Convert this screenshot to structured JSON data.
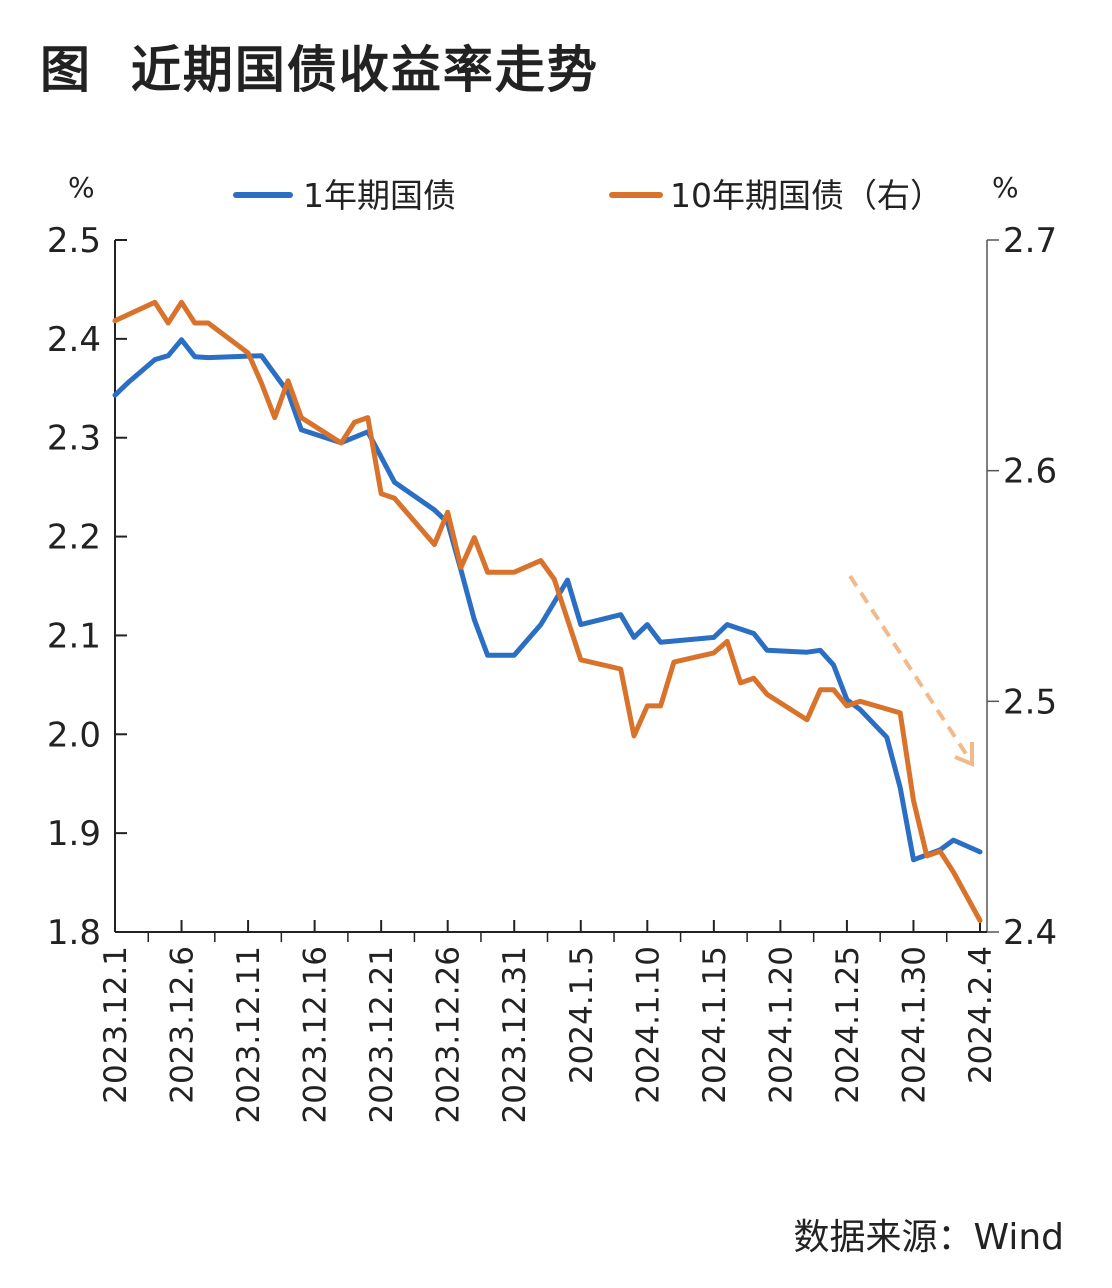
{
  "title": "图  近期国债收益率走势",
  "source": "数据来源：Wind",
  "chart_data": {
    "type": "line",
    "left_unit": "%",
    "right_unit": "%",
    "xlim": [
      "2023-12-01",
      "2024-02-04"
    ],
    "ylim_left": [
      1.8,
      2.5
    ],
    "ylim_right": [
      2.4,
      2.7
    ],
    "yticks_left": [
      "1.8",
      "1.9",
      "2.0",
      "2.1",
      "2.2",
      "2.3",
      "2.4",
      "2.5"
    ],
    "yticks_right": [
      "2.4",
      "2.5",
      "2.6",
      "2.7"
    ],
    "xticks": [
      {
        "date": "2023-12-01",
        "label": "2023.12.1"
      },
      {
        "date": "2023-12-06",
        "label": "2023.12.6"
      },
      {
        "date": "2023-12-11",
        "label": "2023.12.11"
      },
      {
        "date": "2023-12-16",
        "label": "2023.12.16"
      },
      {
        "date": "2023-12-21",
        "label": "2023.12.21"
      },
      {
        "date": "2023-12-26",
        "label": "2023.12.26"
      },
      {
        "date": "2023-12-31",
        "label": "2023.12.31"
      },
      {
        "date": "2024-01-05",
        "label": "2024.1.5"
      },
      {
        "date": "2024-01-10",
        "label": "2024.1.10"
      },
      {
        "date": "2024-01-15",
        "label": "2024.1.15"
      },
      {
        "date": "2024-01-20",
        "label": "2024.1.20"
      },
      {
        "date": "2024-01-25",
        "label": "2024.1.25"
      },
      {
        "date": "2024-01-30",
        "label": "2024.1.30"
      },
      {
        "date": "2024-02-04",
        "label": "2024.2.4"
      }
    ],
    "grid": false,
    "legend_position": "top",
    "annotation": "dashed downward arrow near end",
    "series": [
      {
        "name": "1年期国债",
        "axis": "left",
        "color": "#2a6fc4",
        "points": [
          [
            "2023-12-01",
            2.343
          ],
          [
            "2023-12-02",
            2.356
          ],
          [
            "2023-12-04",
            2.379
          ],
          [
            "2023-12-05",
            2.383
          ],
          [
            "2023-12-06",
            2.399
          ],
          [
            "2023-12-07",
            2.382
          ],
          [
            "2023-12-08",
            2.381
          ],
          [
            "2023-12-12",
            2.383
          ],
          [
            "2023-12-14",
            2.346
          ],
          [
            "2023-12-15",
            2.308
          ],
          [
            "2023-12-18",
            2.295
          ],
          [
            "2023-12-20",
            2.306
          ],
          [
            "2023-12-22",
            2.255
          ],
          [
            "2023-12-25",
            2.227
          ],
          [
            "2023-12-26",
            2.214
          ],
          [
            "2023-12-27",
            2.166
          ],
          [
            "2023-12-28",
            2.116
          ],
          [
            "2023-12-29",
            2.08
          ],
          [
            "2023-12-31",
            2.08
          ],
          [
            "2024-01-02",
            2.111
          ],
          [
            "2024-01-04",
            2.156
          ],
          [
            "2024-01-05",
            2.111
          ],
          [
            "2024-01-08",
            2.121
          ],
          [
            "2024-01-09",
            2.098
          ],
          [
            "2024-01-10",
            2.111
          ],
          [
            "2024-01-11",
            2.093
          ],
          [
            "2024-01-15",
            2.098
          ],
          [
            "2024-01-16",
            2.111
          ],
          [
            "2024-01-18",
            2.102
          ],
          [
            "2024-01-19",
            2.085
          ],
          [
            "2024-01-22",
            2.083
          ],
          [
            "2024-01-23",
            2.085
          ],
          [
            "2024-01-24",
            2.07
          ],
          [
            "2024-01-25",
            2.035
          ],
          [
            "2024-01-26",
            2.025
          ],
          [
            "2024-01-28",
            1.997
          ],
          [
            "2024-01-29",
            1.946
          ],
          [
            "2024-01-30",
            1.873
          ],
          [
            "2024-02-01",
            1.883
          ],
          [
            "2024-02-02",
            1.893
          ],
          [
            "2024-02-04",
            1.881
          ]
        ]
      },
      {
        "name": "10年期国债（右）",
        "axis": "right",
        "color": "#d9722a",
        "points": [
          [
            "2023-12-01",
            2.665
          ],
          [
            "2023-12-04",
            2.673
          ],
          [
            "2023-12-05",
            2.664
          ],
          [
            "2023-12-06",
            2.673
          ],
          [
            "2023-12-07",
            2.664
          ],
          [
            "2023-12-08",
            2.664
          ],
          [
            "2023-12-11",
            2.651
          ],
          [
            "2023-12-12",
            2.638
          ],
          [
            "2023-12-13",
            2.623
          ],
          [
            "2023-12-14",
            2.639
          ],
          [
            "2023-12-15",
            2.623
          ],
          [
            "2023-12-18",
            2.612
          ],
          [
            "2023-12-19",
            2.621
          ],
          [
            "2023-12-20",
            2.623
          ],
          [
            "2023-12-21",
            2.59
          ],
          [
            "2023-12-22",
            2.588
          ],
          [
            "2023-12-25",
            2.568
          ],
          [
            "2023-12-26",
            2.582
          ],
          [
            "2023-12-27",
            2.558
          ],
          [
            "2023-12-28",
            2.571
          ],
          [
            "2023-12-29",
            2.556
          ],
          [
            "2023-12-31",
            2.556
          ],
          [
            "2024-01-02",
            2.561
          ],
          [
            "2024-01-03",
            2.553
          ],
          [
            "2024-01-05",
            2.518
          ],
          [
            "2024-01-08",
            2.514
          ],
          [
            "2024-01-09",
            2.485
          ],
          [
            "2024-01-10",
            2.498
          ],
          [
            "2024-01-11",
            2.498
          ],
          [
            "2024-01-12",
            2.517
          ],
          [
            "2024-01-15",
            2.521
          ],
          [
            "2024-01-16",
            2.526
          ],
          [
            "2024-01-17",
            2.508
          ],
          [
            "2024-01-18",
            2.51
          ],
          [
            "2024-01-19",
            2.503
          ],
          [
            "2024-01-22",
            2.492
          ],
          [
            "2024-01-23",
            2.505
          ],
          [
            "2024-01-24",
            2.505
          ],
          [
            "2024-01-25",
            2.498
          ],
          [
            "2024-01-26",
            2.5
          ],
          [
            "2024-01-29",
            2.495
          ],
          [
            "2024-01-30",
            2.457
          ],
          [
            "2024-01-31",
            2.433
          ],
          [
            "2024-02-01",
            2.435
          ],
          [
            "2024-02-02",
            2.426
          ],
          [
            "2024-02-04",
            2.405
          ]
        ]
      }
    ]
  }
}
